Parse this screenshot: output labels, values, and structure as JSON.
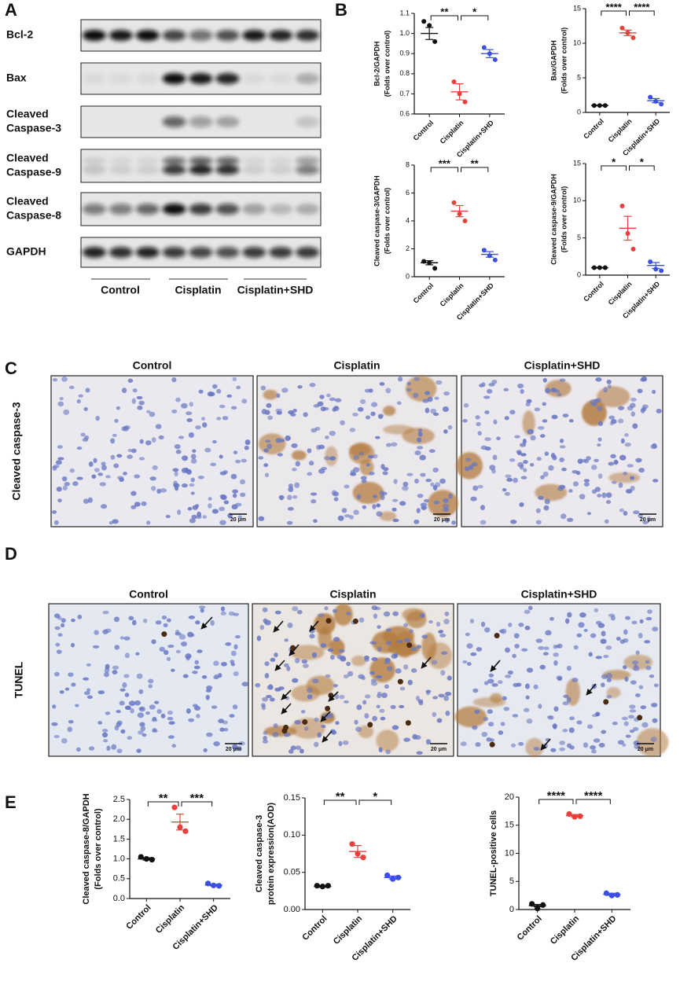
{
  "figure": {
    "panels": [
      "A",
      "B",
      "C",
      "D",
      "E"
    ]
  },
  "blot": {
    "rows": [
      [
        "Bcl-2"
      ],
      [
        "Bax"
      ],
      [
        "Cleaved",
        "Caspase-3"
      ],
      [
        "Cleaved",
        "Caspase-9"
      ],
      [
        "Cleaved",
        "Caspase-8"
      ],
      [
        "GAPDH"
      ]
    ],
    "groups": [
      "Control",
      "Cisplatin",
      "Cisplatin+SHD"
    ]
  },
  "chart_data": [
    {
      "type": "dotplot",
      "ylabel": [
        "Bcl-2/GAPDH",
        "(Folds over control)"
      ],
      "categories": [
        "Control",
        "Cisplatin",
        "Cisplatin+SHD"
      ],
      "colors": [
        "#111111",
        "#e8413c",
        "#3b4fe0"
      ],
      "points": [
        [
          1.06,
          1.04,
          0.96
        ],
        [
          0.76,
          0.7,
          0.66
        ],
        [
          0.93,
          0.9,
          0.87
        ]
      ],
      "means": [
        1.0,
        0.71,
        0.9
      ],
      "sems": [
        0.03,
        0.04,
        0.02
      ],
      "ylim": [
        0.6,
        1.1
      ],
      "yticks": [
        0.6,
        0.7,
        0.8,
        0.9,
        {
          "value": 1,
          "label": "1.0"
        },
        1.1
      ],
      "significance": [
        "**",
        "*"
      ]
    },
    {
      "type": "dotplot",
      "ylabel": [
        "Bax/GAPDH",
        "(Folds over control)"
      ],
      "categories": [
        "Control",
        "Cisplatin",
        "Cisplatin+SHD"
      ],
      "colors": [
        "#111111",
        "#e8413c",
        "#3b4fe0"
      ],
      "points": [
        [
          1.0,
          1.0,
          1.0
        ],
        [
          12.2,
          11.5,
          10.8
        ],
        [
          2.2,
          1.6,
          1.2
        ]
      ],
      "means": [
        1.0,
        11.5,
        1.7
      ],
      "sems": [
        0.05,
        0.4,
        0.3
      ],
      "ylim": [
        0,
        15
      ],
      "yticks": [
        0,
        5,
        10,
        15
      ],
      "significance": [
        "****",
        "****"
      ]
    },
    {
      "type": "dotplot",
      "ylabel": [
        "Cleaved caspase-3/GAPDH",
        "(Folds over control)"
      ],
      "categories": [
        "Control",
        "Cisplatin",
        "Cisplatin+SHD"
      ],
      "colors": [
        "#111111",
        "#e8413c",
        "#3b4fe0"
      ],
      "points": [
        [
          1.1,
          1.0,
          0.6
        ],
        [
          5.3,
          4.5,
          4.0
        ],
        [
          1.9,
          1.5,
          1.2
        ]
      ],
      "means": [
        1.0,
        4.7,
        1.6
      ],
      "sems": [
        0.15,
        0.4,
        0.2
      ],
      "ylim": [
        0,
        8
      ],
      "yticks": [
        0,
        2,
        4,
        6,
        8
      ],
      "significance": [
        "***",
        "**"
      ]
    },
    {
      "type": "dotplot",
      "ylabel": [
        "Cleaved caspase-9/GAPDH",
        "(Folds over control)"
      ],
      "categories": [
        "Control",
        "Cisplatin",
        "Cisplatin+SHD"
      ],
      "colors": [
        "#111111",
        "#e8413c",
        "#3b4fe0"
      ],
      "points": [
        [
          1.0,
          1.0,
          1.0
        ],
        [
          9.3,
          5.6,
          3.5
        ],
        [
          1.8,
          0.8,
          0.6
        ]
      ],
      "means": [
        1.0,
        6.3,
        1.3
      ],
      "sems": [
        0.05,
        1.6,
        0.4
      ],
      "ylim": [
        0,
        15
      ],
      "yticks": [
        0,
        5,
        10,
        15
      ],
      "significance": [
        "*",
        "*"
      ]
    },
    {
      "type": "dotplot",
      "ylabel": [
        "Cleaved caspase-8/GAPDH",
        "(Folds over control)"
      ],
      "categories": [
        "Control",
        "Cisplatin",
        "Cisplatin+SHD"
      ],
      "colors": [
        "#111111",
        "#e8413c",
        "#3b4fe0"
      ],
      "points": [
        [
          1.05,
          1.0,
          0.98
        ],
        [
          2.3,
          1.8,
          1.7
        ],
        [
          0.38,
          0.33,
          0.32
        ]
      ],
      "means": [
        1.0,
        1.93,
        0.34
      ],
      "sems": [
        0.03,
        0.2,
        0.02
      ],
      "ylim": [
        0,
        2.5
      ],
      "yticks": [
        {
          "value": 0,
          "label": "0.0"
        },
        0.5,
        {
          "value": 1,
          "label": "1.0"
        },
        1.5,
        {
          "value": 2,
          "label": "2.0"
        },
        2.5
      ],
      "significance": [
        "**",
        "***"
      ]
    },
    {
      "type": "dotplot",
      "ylabel": [
        "Cleaved caspase-3",
        "protein expression(AOD)"
      ],
      "categories": [
        "Control",
        "Cisplatin",
        "Cisplatin+SHD"
      ],
      "colors": [
        "#111111",
        "#e8413c",
        "#3b4fe0"
      ],
      "points": [
        [
          0.032,
          0.031,
          0.032
        ],
        [
          0.088,
          0.075,
          0.07
        ],
        [
          0.046,
          0.041,
          0.043
        ]
      ],
      "means": [
        0.031,
        0.078,
        0.043
      ],
      "sems": [
        0.001,
        0.008,
        0.002
      ],
      "ylim": [
        0,
        0.15
      ],
      "yticks": [
        {
          "value": 0,
          "label": "0.00"
        },
        0.05,
        {
          "value": 0.1,
          "label": "0.10"
        },
        0.15
      ],
      "significance": [
        "**",
        "*"
      ]
    },
    {
      "type": "dotplot",
      "ylabel": [
        "TUNEL-positive cells"
      ],
      "categories": [
        "Control",
        "Cisplatin",
        "Cisplatin+SHD"
      ],
      "colors": [
        "#111111",
        "#e8413c",
        "#3b4fe0"
      ],
      "points": [
        [
          1.0,
          0.2,
          0.8
        ],
        [
          17.0,
          16.5,
          16.6
        ],
        [
          2.9,
          2.5,
          2.6
        ]
      ],
      "means": [
        0.7,
        16.7,
        2.7
      ],
      "sems": [
        0.2,
        0.2,
        0.2
      ],
      "ylim": [
        0,
        20
      ],
      "yticks": [
        0,
        5,
        10,
        15,
        20
      ],
      "significance": [
        "****",
        "****"
      ]
    }
  ],
  "ihc": {
    "row_label": "Cleaved caspase-3",
    "columns": [
      "Control",
      "Cisplatin",
      "Cisplatin+SHD"
    ],
    "scale_bars": [
      "20 μm",
      "20 μm",
      "20 μm"
    ]
  },
  "tunel": {
    "row_label": "TUNEL",
    "columns": [
      "Control",
      "Cisplatin",
      "Cisplatin+SHD"
    ],
    "scale_bars": [
      "20 μm",
      "20 μm",
      "20 μm"
    ]
  }
}
